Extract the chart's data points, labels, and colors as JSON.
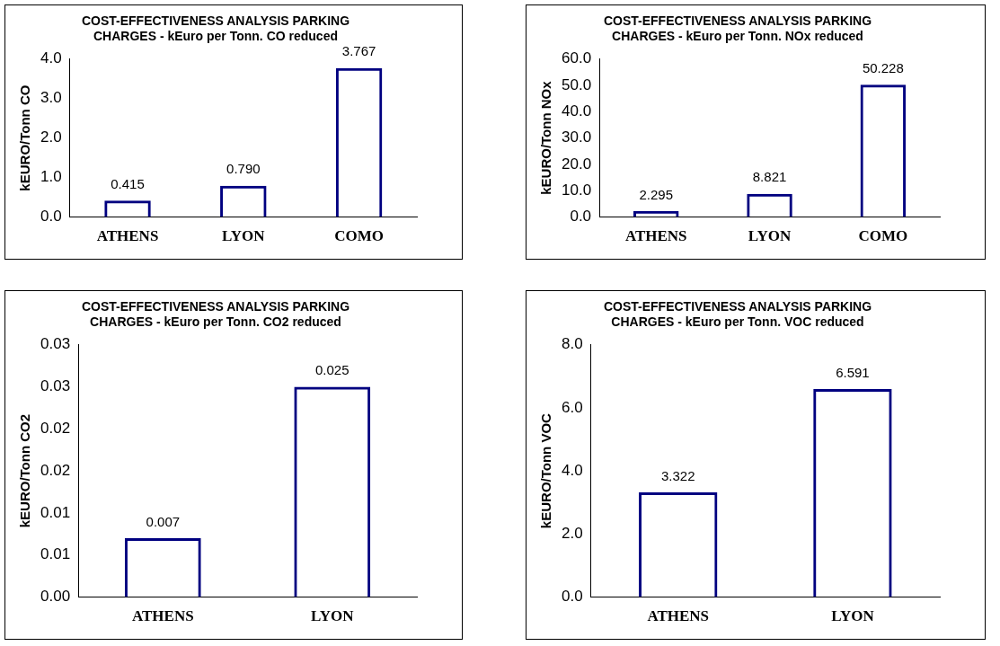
{
  "chart_data": [
    {
      "type": "bar",
      "title": "COST-EFFECTIVENESS ANALYSIS PARKING CHARGES - kEuro per Tonn. CO reduced",
      "ylabel": "kEURO/Tonn CO",
      "categories": [
        "ATHENS",
        "LYON",
        "COMO"
      ],
      "values": [
        0.415,
        0.79,
        3.767
      ],
      "value_labels": [
        "0.415",
        "0.790",
        "3.767"
      ],
      "color": "#000080",
      "ylim": [
        0,
        4
      ],
      "yticks": [
        {
          "value": 0,
          "label": "0.0"
        },
        {
          "value": 1,
          "label": "1.0"
        },
        {
          "value": 2,
          "label": "2.0"
        },
        {
          "value": 3,
          "label": "3.0"
        },
        {
          "value": 4,
          "label": "4.0"
        }
      ],
      "legend": false
    },
    {
      "type": "bar",
      "title": "COST-EFFECTIVENESS ANALYSIS PARKING CHARGES - kEuro per Tonn. NOx reduced",
      "ylabel": "kEURO/Tonn NOx",
      "categories": [
        "ATHENS",
        "LYON",
        "COMO"
      ],
      "values": [
        2.295,
        8.821,
        50.228
      ],
      "value_labels": [
        "2.295",
        "8.821",
        "50.228"
      ],
      "color": "#000080",
      "ylim": [
        0,
        60
      ],
      "yticks": [
        {
          "value": 0,
          "label": "0.0"
        },
        {
          "value": 10,
          "label": "10.0"
        },
        {
          "value": 20,
          "label": "20.0"
        },
        {
          "value": 30,
          "label": "30.0"
        },
        {
          "value": 40,
          "label": "40.0"
        },
        {
          "value": 50,
          "label": "50.0"
        },
        {
          "value": 60,
          "label": "60.0"
        }
      ],
      "legend": false
    },
    {
      "type": "bar",
      "title": "COST-EFFECTIVENESS ANALYSIS PARKING CHARGES - kEuro per Tonn. CO2 reduced",
      "ylabel": "kEURO/Tonn CO2",
      "categories": [
        "ATHENS",
        "LYON"
      ],
      "values": [
        0.007,
        0.025
      ],
      "value_labels": [
        "0.007",
        "0.025"
      ],
      "color": "#000080",
      "ylim": [
        0,
        0.03
      ],
      "yticks": [
        {
          "value": 0,
          "label": "0.00"
        },
        {
          "value": 0.005,
          "label": "0.01"
        },
        {
          "value": 0.01,
          "label": "0.01"
        },
        {
          "value": 0.015,
          "label": "0.02"
        },
        {
          "value": 0.02,
          "label": "0.02"
        },
        {
          "value": 0.025,
          "label": "0.03"
        },
        {
          "value": 0.03,
          "label": "0.03"
        }
      ],
      "legend": false
    },
    {
      "type": "bar",
      "title": "COST-EFFECTIVENESS ANALYSIS PARKING CHARGES - kEuro per Tonn. VOC reduced",
      "ylabel": "kEURO/Tonn VOC",
      "categories": [
        "ATHENS",
        "LYON"
      ],
      "values": [
        3.322,
        6.591
      ],
      "value_labels": [
        "3.322",
        "6.591"
      ],
      "color": "#000080",
      "ylim": [
        0,
        8
      ],
      "yticks": [
        {
          "value": 0,
          "label": "0.0"
        },
        {
          "value": 2,
          "label": "2.0"
        },
        {
          "value": 4,
          "label": "4.0"
        },
        {
          "value": 6,
          "label": "6.0"
        },
        {
          "value": 8,
          "label": "8.0"
        }
      ],
      "legend": false
    }
  ]
}
